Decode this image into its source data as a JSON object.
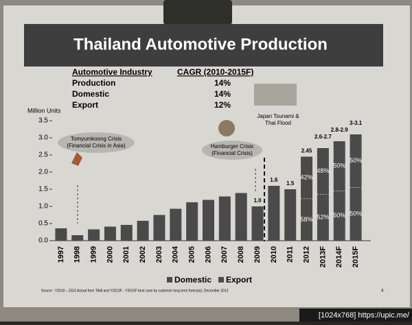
{
  "chart_data": {
    "type": "bar",
    "title": "Thailand Automotive Production",
    "table": {
      "header": [
        "Automotive Industry",
        "CAGR (2010-2015F)"
      ],
      "rows": [
        [
          "Production",
          "14%"
        ],
        [
          "Domestic",
          "14%"
        ],
        [
          "Export",
          "12%"
        ]
      ]
    },
    "y_label": "Million Units",
    "categories": [
      "1997",
      "1998",
      "1999",
      "2000",
      "2001",
      "2002",
      "2003",
      "2004",
      "2005",
      "2006",
      "2007",
      "2008",
      "2009",
      "2010",
      "2011",
      "2012",
      "2013F",
      "2014F",
      "2015F"
    ],
    "values": [
      0.36,
      0.16,
      0.33,
      0.41,
      0.46,
      0.58,
      0.75,
      0.93,
      1.12,
      1.19,
      1.29,
      1.39,
      1.0,
      1.6,
      1.5,
      2.45,
      2.7,
      2.9,
      3.1
    ],
    "value_labels": [
      null,
      null,
      null,
      null,
      null,
      null,
      null,
      null,
      null,
      null,
      null,
      null,
      "1.0",
      "1.6",
      "1.5",
      "2.45",
      "2.6-2.7",
      "2.8-2.9",
      "3-3.1"
    ],
    "split_labels": [
      null,
      null,
      null,
      null,
      null,
      null,
      null,
      null,
      null,
      null,
      null,
      null,
      null,
      null,
      null,
      {
        "top": "42%",
        "bottom": "58%"
      },
      {
        "top": "48%",
        "bottom": "52%"
      },
      {
        "top": "50%",
        "bottom": "50%"
      },
      {
        "top": "50%",
        "bottom": "50%"
      }
    ],
    "color": "#4a4a4a",
    "ylim": [
      0,
      3.5
    ],
    "yticks": [
      {
        "value": 0,
        "label": "0.0"
      },
      0.5,
      {
        "value": 1,
        "label": "1.0"
      },
      1.5,
      {
        "value": 2,
        "label": "2.0"
      },
      2.5,
      {
        "value": 3,
        "label": "3.0"
      },
      3.5
    ],
    "annotations": [
      "Tomyumkoong Crisis",
      "(Financial Crisis in Asia)",
      "Hamburger Crisis",
      "(Financial Crisis)",
      "Japan Tsunami &",
      "Thai Flood"
    ],
    "legend": [
      "Domestic",
      "Export"
    ],
    "source": "Source : Y2010 – 2012 Actual from TAIA  and Y2013F - Y2015F best case by customer long term forecast), December 2012",
    "page_number": "4",
    "watermark": "[1024x768] https://upic.me/"
  }
}
